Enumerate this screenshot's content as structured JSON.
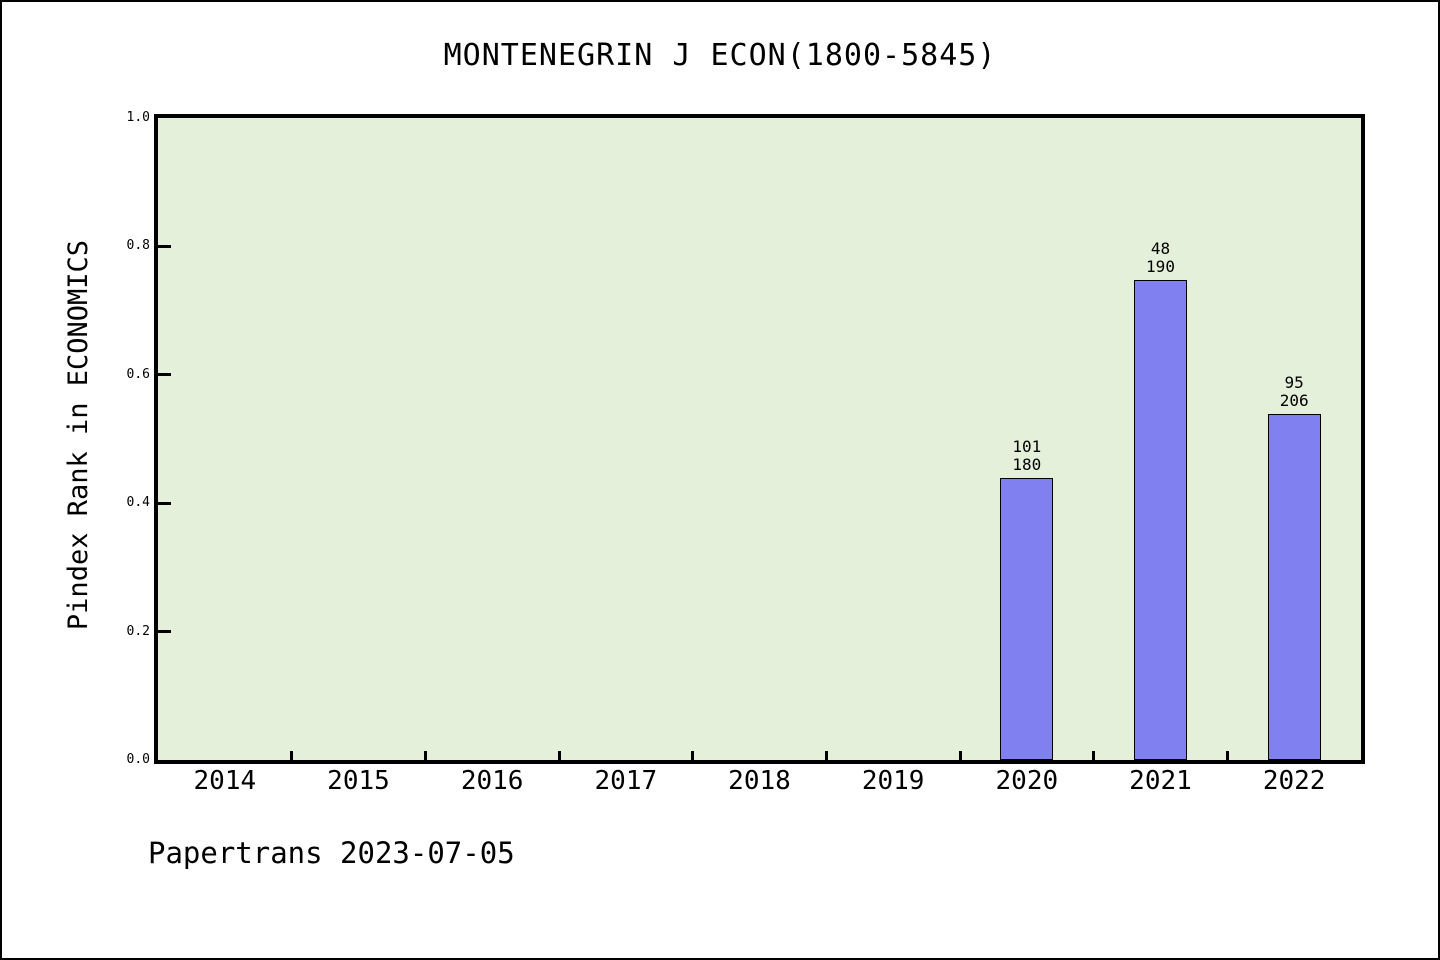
{
  "page": {
    "footer": "Papertrans 2023-07-05"
  },
  "chart_data": {
    "type": "bar",
    "title": "MONTENEGRIN J ECON(1800-5845)",
    "xlabel": "",
    "ylabel": "Pindex Rank in ECONOMICS",
    "categories": [
      "2014",
      "2015",
      "2016",
      "2017",
      "2018",
      "2019",
      "2020",
      "2021",
      "2022"
    ],
    "values": [
      null,
      null,
      null,
      null,
      null,
      null,
      0.44,
      0.747,
      0.539
    ],
    "bar_labels": [
      null,
      null,
      null,
      null,
      null,
      null,
      [
        "101",
        "180"
      ],
      [
        "48",
        "190"
      ],
      [
        "95",
        "206"
      ]
    ],
    "ylim": [
      0.0,
      1.0
    ],
    "yticks": [
      0.0,
      0.2,
      0.4,
      0.6,
      0.8,
      1.0
    ],
    "ytick_labels": [
      "0.0",
      "0.2",
      "0.4",
      "0.6",
      "0.8",
      "1.0"
    ],
    "grid": false,
    "legend": "none",
    "colors": {
      "bar_fill": "#8080f0",
      "bar_edge": "#000000",
      "plot_bg": "#e4f0da",
      "page_bg": "#ffffff",
      "text": "#000000"
    }
  }
}
